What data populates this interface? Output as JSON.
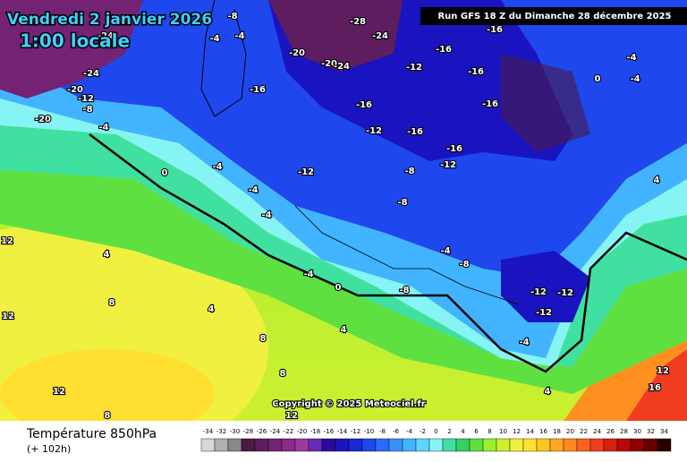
{
  "header": {
    "date": "Vendredi 2 janvier 2026",
    "time": "1:00 locale",
    "run": "Run GFS 18 Z du Dimanche 28 décembre 2025"
  },
  "footer": {
    "title": "Température 850hPa",
    "lead": "(+ 102h)",
    "copyright": "Copyright © 2025 Meteociel.fr"
  },
  "scale": {
    "labels": [
      "-34",
      "-32",
      "-30",
      "-28",
      "-26",
      "-24",
      "-22",
      "-20",
      "-18",
      "-16",
      "-14",
      "-12",
      "-10",
      "-8",
      "-6",
      "-4",
      "-2",
      "0",
      "2",
      "4",
      "6",
      "8",
      "10",
      "12",
      "14",
      "16",
      "18",
      "20",
      "22",
      "24",
      "26",
      "28",
      "30",
      "32",
      "34"
    ],
    "colors": [
      "#d8d8d8",
      "#b0b0b0",
      "#888888",
      "#4a1a48",
      "#5e1d5e",
      "#742274",
      "#8a2a8a",
      "#9c3aa0",
      "#6a2ab8",
      "#2a0aa0",
      "#1a14c0",
      "#1a28d8",
      "#1e48ee",
      "#2a6cff",
      "#3a90ff",
      "#42b4ff",
      "#5ed4ff",
      "#86f4f4",
      "#40e0a0",
      "#34d060",
      "#5ee040",
      "#9cf030",
      "#ccf030",
      "#f0f040",
      "#ffe030",
      "#ffc820",
      "#ffa820",
      "#ff8820",
      "#ff6020",
      "#f03c20",
      "#d82010",
      "#b80808",
      "#900000",
      "#680000",
      "#280000"
    ]
  },
  "map_labels": [
    "-20",
    "-24",
    "-20",
    "-12",
    "-8",
    "-4",
    "-24",
    "-8",
    "-4",
    "-4",
    "-16",
    "-20",
    "-20",
    "-24",
    "-28",
    "-24",
    "-16",
    "-12",
    "-16",
    "-16",
    "-16",
    "-16",
    "-12",
    "-16",
    "-12",
    "-8",
    "-12",
    "-16",
    "-4",
    "-4",
    "-4",
    "-8",
    "0",
    "4",
    "-4",
    "-4",
    "0",
    "4",
    "-12",
    "-12",
    "-12",
    "-4",
    "4",
    "12",
    "12",
    "12",
    "8",
    "4",
    "8",
    "8",
    "12",
    "16",
    "-4",
    "0",
    "-8",
    "-4",
    "-8",
    "4",
    "8",
    "12"
  ]
}
